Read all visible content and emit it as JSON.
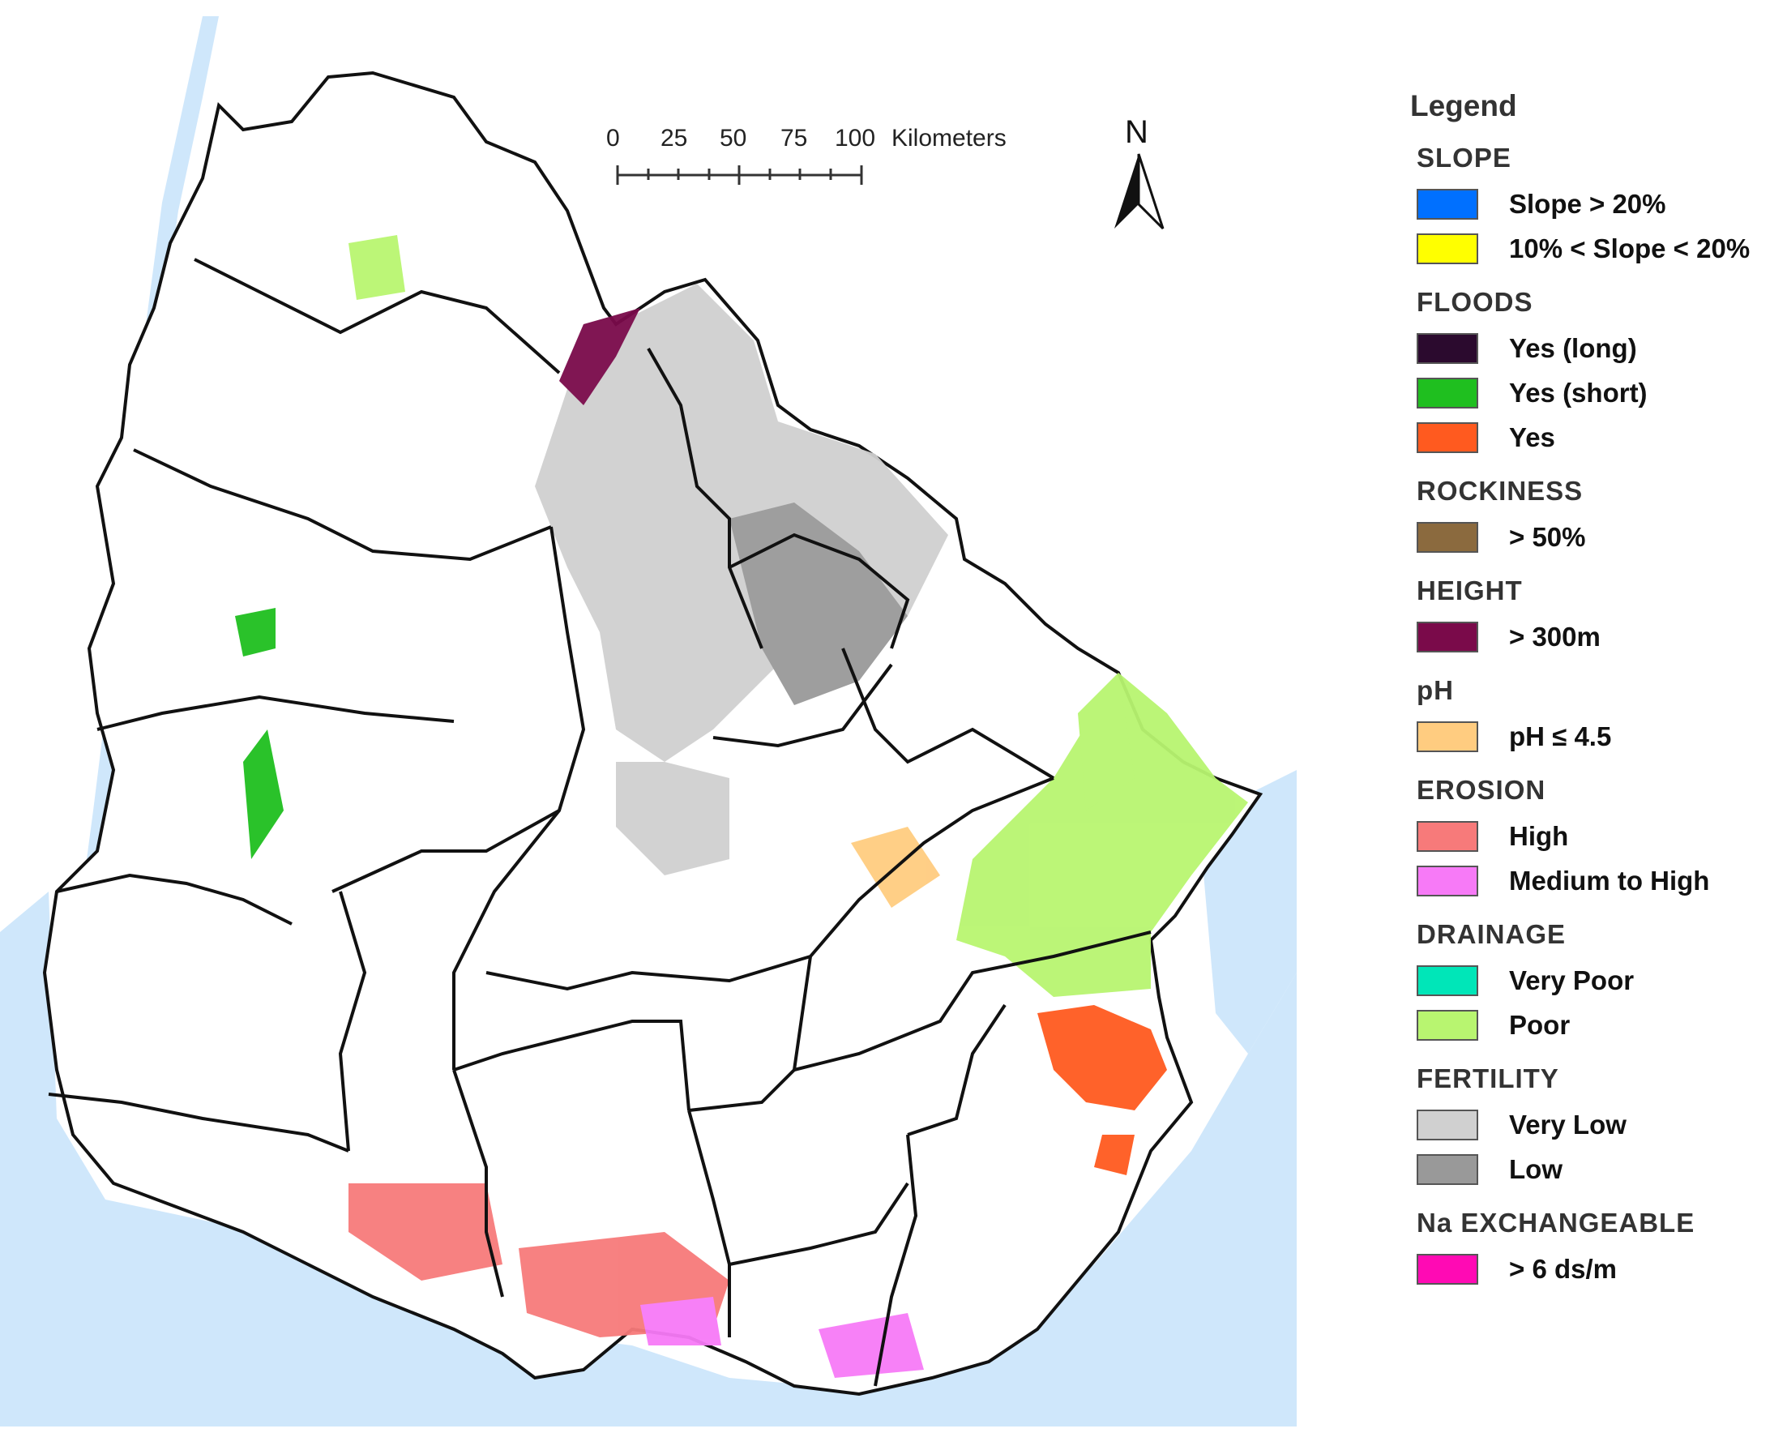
{
  "scale_bar": {
    "ticks": [
      "0",
      "25",
      "50",
      "75",
      "100"
    ],
    "unit": "Kilometers"
  },
  "north_arrow": {
    "label": "N"
  },
  "legend": {
    "title": "Legend",
    "groups": [
      {
        "title": "SLOPE",
        "items": [
          {
            "label": "Slope > 20%",
            "color": "#0070ff"
          },
          {
            "label": "10% < Slope < 20%",
            "color": "#ffff00"
          }
        ]
      },
      {
        "title": "FLOODS",
        "items": [
          {
            "label": "Yes (long)",
            "color": "#2b0a2e"
          },
          {
            "label": "Yes (short)",
            "color": "#1fbf1f"
          },
          {
            "label": "Yes",
            "color": "#ff5a1f"
          }
        ]
      },
      {
        "title": "ROCKINESS",
        "items": [
          {
            "label": "> 50%",
            "color": "#8b6a3e"
          }
        ]
      },
      {
        "title": "HEIGHT",
        "items": [
          {
            "label": "> 300m",
            "color": "#7a0a4a"
          }
        ]
      },
      {
        "title": "pH",
        "items": [
          {
            "label": "pH ≤ 4.5",
            "color": "#ffcc80"
          }
        ]
      },
      {
        "title": "EROSION",
        "items": [
          {
            "label": "High",
            "color": "#f77a7a"
          },
          {
            "label": "Medium to High",
            "color": "#f77af7"
          }
        ]
      },
      {
        "title": "DRAINAGE",
        "items": [
          {
            "label": "Very Poor",
            "color": "#00e6b8"
          },
          {
            "label": "Poor",
            "color": "#b8f570"
          }
        ]
      },
      {
        "title": "FERTILITY",
        "items": [
          {
            "label": "Very Low",
            "color": "#d0d0d0"
          },
          {
            "label": "Low",
            "color": "#999999"
          }
        ]
      },
      {
        "title": "Na EXCHANGEABLE",
        "items": [
          {
            "label": "> 6 ds/m",
            "color": "#ff0ab4"
          }
        ]
      }
    ]
  }
}
